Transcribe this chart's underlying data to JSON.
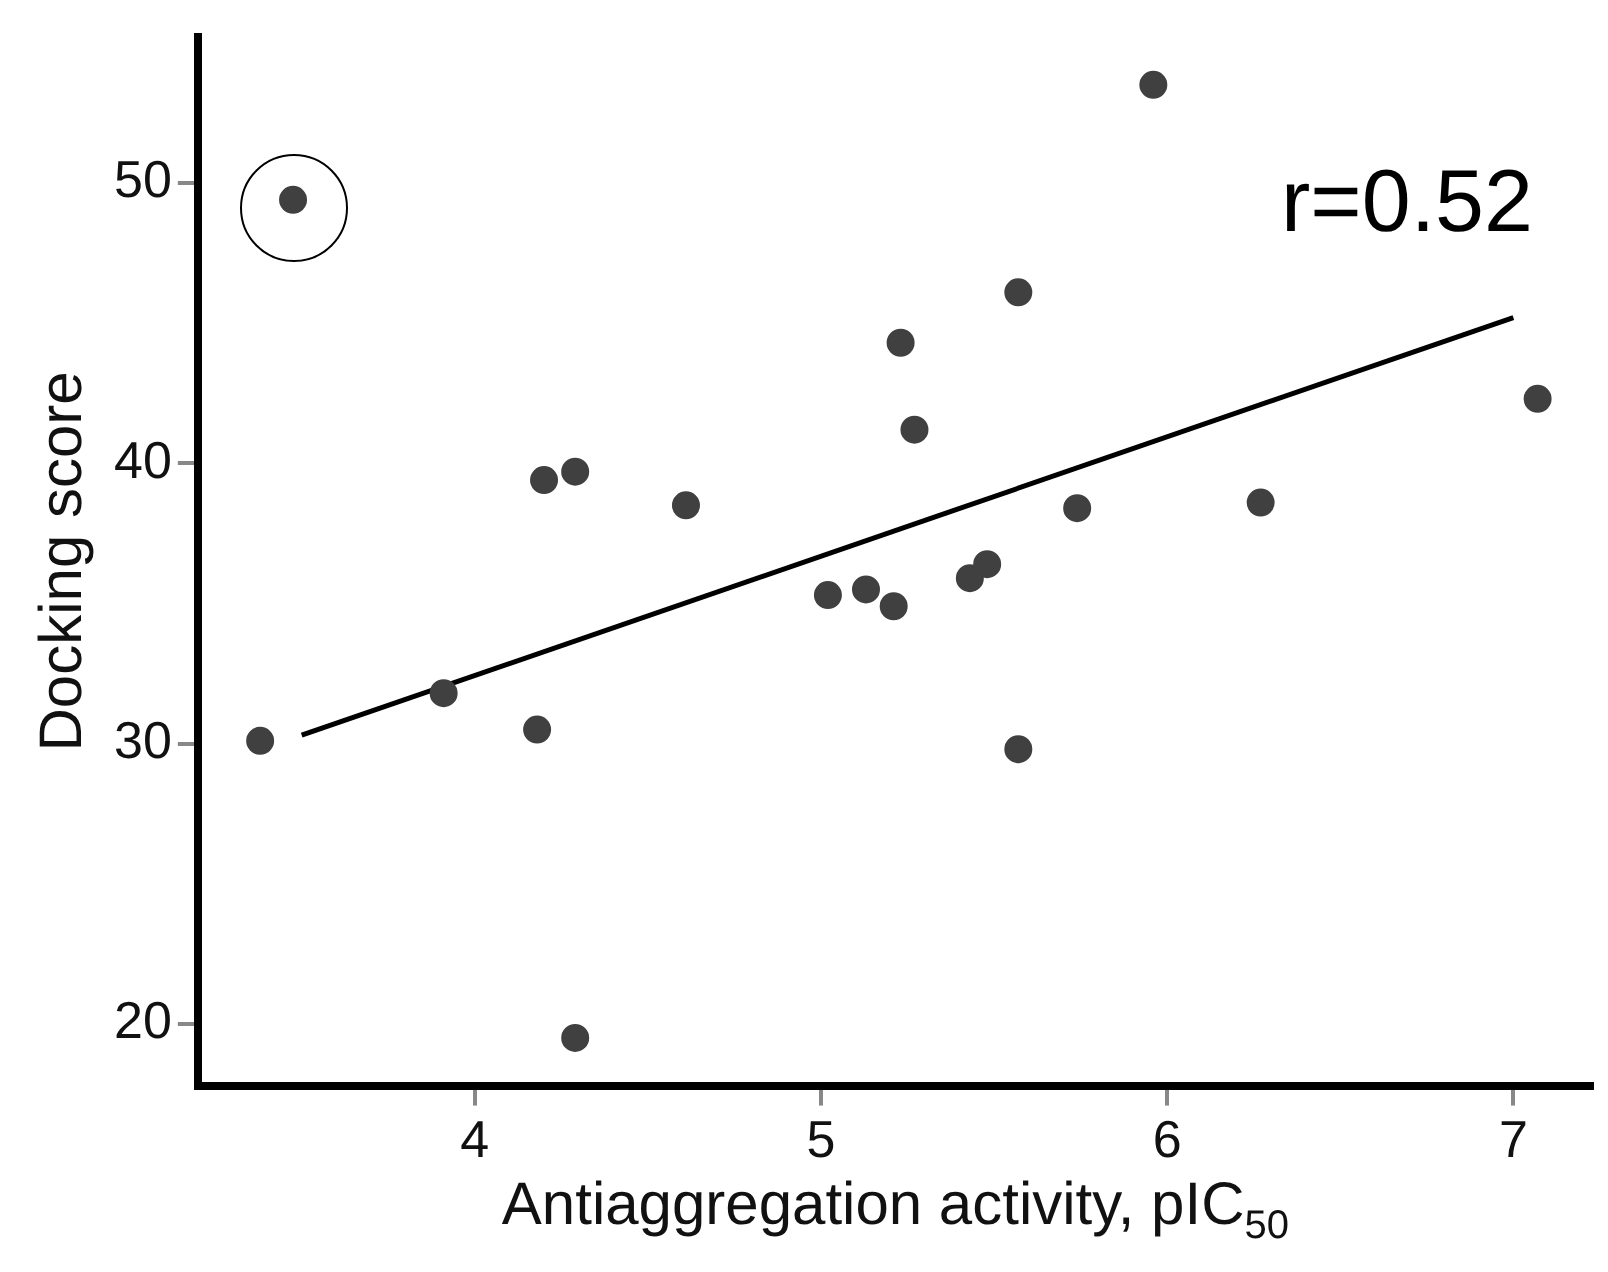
{
  "chart_data": {
    "type": "scatter",
    "xlabel": "Antiaggregation activity, pIC$_{50}$",
    "ylabel": "Docking score",
    "annotations": [
      "r=0.52"
    ],
    "xlim": [
      3.2,
      7.23
    ],
    "xticks": [
      4,
      5,
      6,
      7
    ],
    "ylim": [
      17.8,
      55.2
    ],
    "yticks": [
      20,
      30,
      40,
      50
    ],
    "grid": false,
    "legend": false,
    "series": [
      {
        "type": "scatter",
        "marker": "circle",
        "color": "#404040",
        "x": [
          3.475,
          5.96,
          5.57,
          5.23,
          5.27,
          4.2,
          4.29,
          4.61,
          5.74,
          6.27,
          7.07,
          5.02,
          5.13,
          5.21,
          5.43,
          5.48,
          3.91,
          4.18,
          3.38,
          5.57,
          4.29
        ],
        "values": [
          49.4,
          53.5,
          46.1,
          44.3,
          41.2,
          39.4,
          39.7,
          38.5,
          38.4,
          38.6,
          42.3,
          35.3,
          35.5,
          34.9,
          35.9,
          36.4,
          31.8,
          30.5,
          30.1,
          29.8,
          19.5
        ]
      },
      {
        "type": "line",
        "color": "#000000",
        "x": [
          3.5,
          7.0
        ],
        "values": [
          30.3,
          45.2
        ]
      }
    ]
  }
}
